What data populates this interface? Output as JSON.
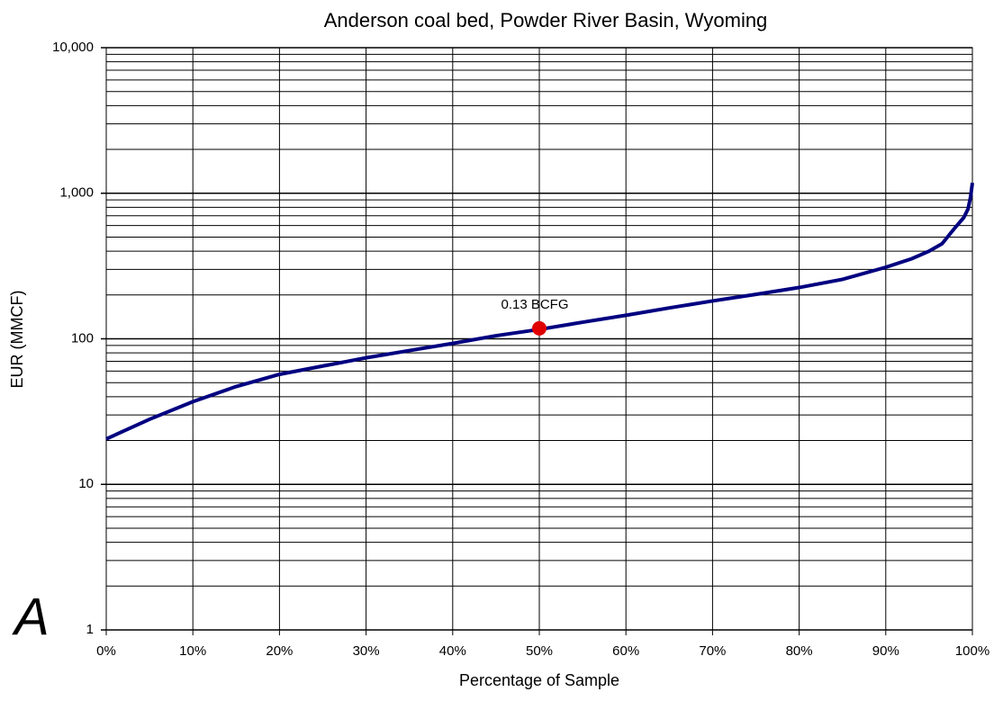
{
  "chart_data": {
    "type": "line",
    "title": "Anderson coal bed, Powder River Basin, Wyoming",
    "xlabel": "Percentage of Sample",
    "ylabel": "EUR (MMCF)",
    "panel_label": "A",
    "log_y": true,
    "grid": true,
    "xlim": [
      0,
      100
    ],
    "xticks": [
      {
        "value": 0,
        "label": "0%"
      },
      {
        "value": 10,
        "label": "10%"
      },
      {
        "value": 20,
        "label": "20%"
      },
      {
        "value": 30,
        "label": "30%"
      },
      {
        "value": 40,
        "label": "40%"
      },
      {
        "value": 50,
        "label": "50%"
      },
      {
        "value": 60,
        "label": "60%"
      },
      {
        "value": 70,
        "label": "70%"
      },
      {
        "value": 80,
        "label": "80%"
      },
      {
        "value": 90,
        "label": "90%"
      },
      {
        "value": 100,
        "label": "100%"
      }
    ],
    "ylim": [
      1,
      10000
    ],
    "yticks": [
      1,
      10,
      100,
      {
        "value": 1000,
        "label": "1,000"
      },
      {
        "value": 10000,
        "label": "10,000"
      }
    ],
    "yminor": [
      2,
      3,
      4,
      5,
      6,
      7,
      8,
      9,
      20,
      30,
      40,
      50,
      60,
      70,
      80,
      90,
      200,
      300,
      400,
      500,
      600,
      700,
      800,
      900,
      2000,
      3000,
      4000,
      5000,
      6000,
      7000,
      8000,
      9000
    ],
    "series": [
      {
        "color": "#000080",
        "x": [
          0,
          5,
          10,
          15,
          20,
          25,
          30,
          35,
          40,
          45,
          50,
          55,
          60,
          65,
          70,
          75,
          80,
          85,
          90,
          93,
          95,
          96.5,
          98,
          99,
          99.5,
          99.8,
          100
        ],
        "values": [
          20.5,
          28,
          37,
          47,
          57,
          65,
          74,
          83,
          93,
          105,
          116,
          130,
          145,
          163,
          182,
          202,
          225,
          256,
          310,
          355,
          400,
          450,
          580,
          680,
          780,
          950,
          1180
        ]
      }
    ],
    "marker": {
      "x": 50,
      "y": 118,
      "color": "#e00000",
      "label": "0.13 BCFG"
    }
  }
}
